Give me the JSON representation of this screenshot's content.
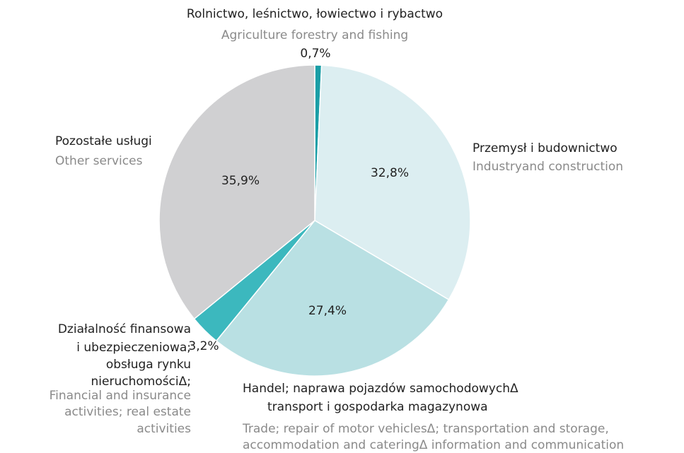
{
  "chart_data": {
    "type": "pie",
    "categories": [
      [
        "Rolnictwo, leśnictwo, łowiectwo i rybactwo"
      ],
      [
        "Przemysł  i budownictwo"
      ],
      [
        "Handel; naprawa pojazdów samochodowychΔ",
        "transport i gospodarka magazynowa"
      ],
      [
        "Działalność finansowa",
        "i ubezpieczeniowa;",
        "obsługa rynku",
        "nieruchomościΔ;"
      ],
      [
        "Pozostałe usługi"
      ]
    ],
    "categories_en": [
      [
        "Agriculture forestry and  fishing"
      ],
      [
        "Industryand construction"
      ],
      [
        "Trade; repair of motor vehiclesΔ; transportation and storage,",
        "accommodation and cateringΔ  information and communication"
      ],
      [
        "Financial and insurance",
        "activities; real estate",
        "activities"
      ],
      [
        "Other services"
      ]
    ],
    "values": [
      0.7,
      32.8,
      27.4,
      3.2,
      35.9
    ],
    "value_labels": [
      "0,7%",
      "32,8%",
      "27,4%",
      "3,2%",
      "35,9%"
    ],
    "colors": [
      "#1a9ea6",
      "#dceef1",
      "#b9e0e3",
      "#3cb8be",
      "#d0d0d2"
    ]
  }
}
